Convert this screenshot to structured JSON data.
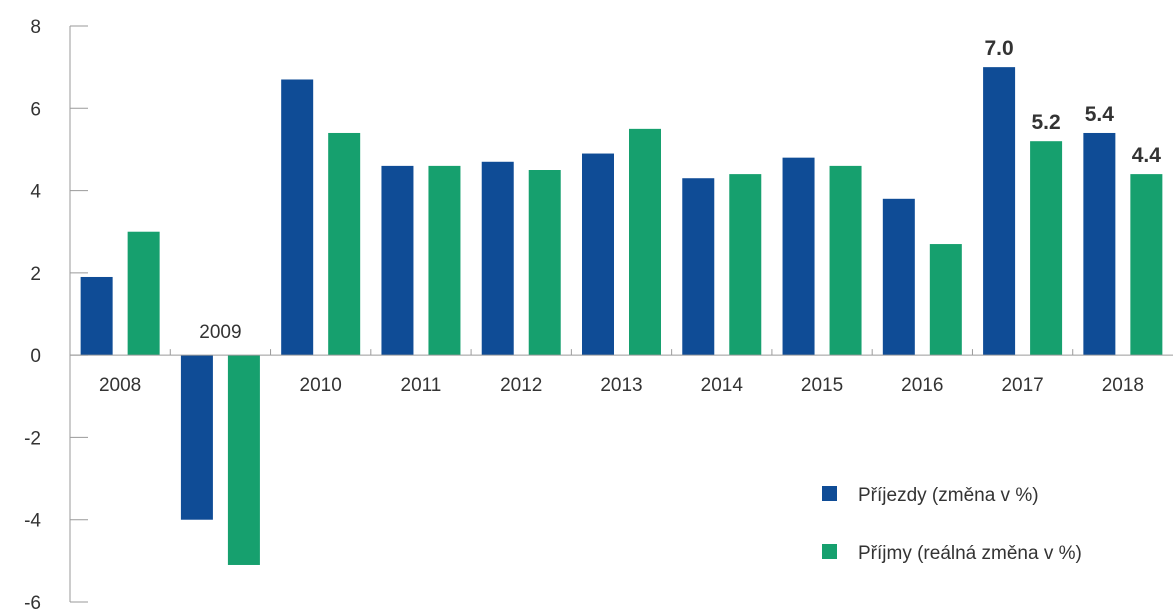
{
  "chart_data": {
    "type": "bar",
    "categories": [
      "2008",
      "2009",
      "2010",
      "2011",
      "2012",
      "2013",
      "2014",
      "2015",
      "2016",
      "2017",
      "2018"
    ],
    "series": [
      {
        "name": "Příjezdy (změna v %)",
        "color": "#0f4c96",
        "values": [
          1.9,
          -4.0,
          6.7,
          4.6,
          4.7,
          4.9,
          4.3,
          4.8,
          3.8,
          7.0,
          5.4
        ]
      },
      {
        "name": "Příjmy (reálná změna v %)",
        "color": "#16a06e",
        "values": [
          3.0,
          -5.1,
          5.4,
          4.6,
          4.5,
          5.5,
          4.4,
          4.6,
          2.7,
          5.2,
          4.4
        ]
      }
    ],
    "y_ticks": [
      "8",
      "6",
      "4",
      "2",
      "0",
      "-2",
      "-4",
      "-6"
    ],
    "ylim": [
      -6,
      8
    ],
    "data_labels": [
      {
        "series": 0,
        "category": "2017",
        "text": "7.0"
      },
      {
        "series": 1,
        "category": "2017",
        "text": "5.2"
      },
      {
        "series": 0,
        "category": "2018",
        "text": "5.4"
      },
      {
        "series": 1,
        "category": "2018",
        "text": "4.4"
      }
    ],
    "legend_position": "bottom-right",
    "grid": false
  }
}
